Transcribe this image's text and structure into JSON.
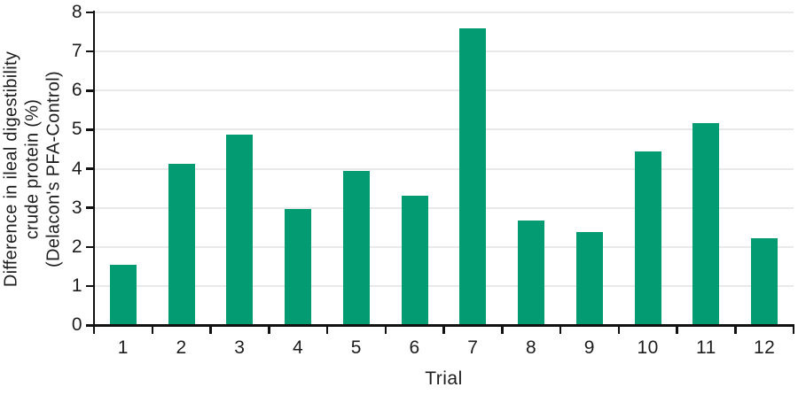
{
  "chart_data": {
    "type": "bar",
    "title": "",
    "categories": [
      "1",
      "2",
      "3",
      "4",
      "5",
      "6",
      "7",
      "8",
      "9",
      "10",
      "11",
      "12"
    ],
    "values": [
      1.55,
      4.13,
      4.87,
      2.96,
      3.95,
      3.31,
      7.6,
      2.68,
      2.37,
      4.44,
      5.17,
      2.21
    ],
    "xlabel": "Trial",
    "ylabel_lines": [
      "Difference in ileal digestibility",
      "crude protein (%)",
      "(Delacon's PFA-Control)"
    ],
    "ylim": [
      0,
      8
    ],
    "yticks": [
      0,
      1,
      2,
      3,
      4,
      5,
      6,
      7,
      8
    ],
    "grid": "horizontal",
    "legend_position": "none",
    "bar_color": "#029b72",
    "gridline_color": "#e9e9e9",
    "axis_color": "#111111",
    "text_color": "#1d1d1d"
  }
}
